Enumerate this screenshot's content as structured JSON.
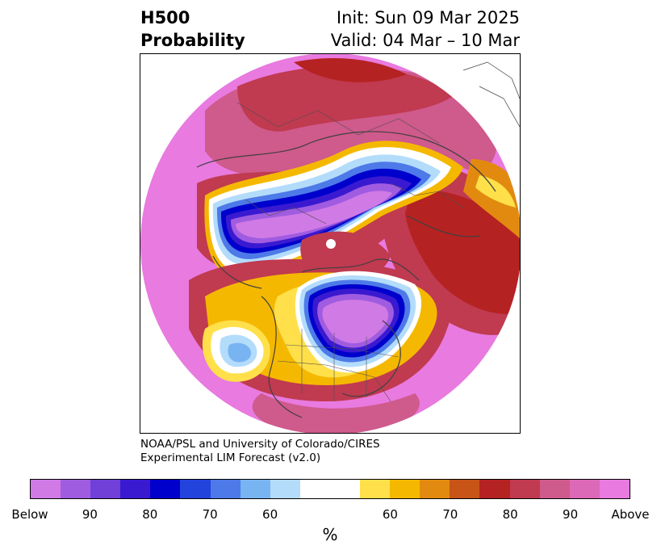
{
  "title": {
    "left_line1": "H500",
    "left_line2": "Probability",
    "right_line1": "Init: Sun 09 Mar 2025",
    "right_line2": "Valid: 04 Mar – 10 Mar"
  },
  "credit": {
    "line1": "NOAA/PSL and University of Colorado/CIRES",
    "line2": "Experimental LIM Forecast (v2.0)"
  },
  "colorbar": {
    "unit": "%",
    "colors": [
      "#d07ae6",
      "#a05ce0",
      "#7040d8",
      "#3a1ad0",
      "#0000cc",
      "#2244dd",
      "#4d7ae8",
      "#78b4f2",
      "#b3dcfb",
      "#ffffff",
      "#ffffff",
      "#ffe04a",
      "#f5b800",
      "#e28a10",
      "#c85418",
      "#b52222",
      "#c03a50",
      "#cf5a8c",
      "#dc68b8",
      "#e87ae0"
    ],
    "labels": [
      "Below",
      "90",
      "80",
      "70",
      "60",
      "60",
      "70",
      "80",
      "90",
      "Above"
    ]
  },
  "map": {
    "colors": {
      "background": "#e87ae0",
      "above_light": "#cf5a8c",
      "above_mid": "#c03a50",
      "above_strong": "#b52222",
      "orange": "#e28a10",
      "yellow": "#f5b800",
      "lightyellow": "#ffe04a",
      "below_light": "#b3dcfb",
      "below_mid": "#4d7ae8",
      "below_strong": "#0000cc",
      "below_purple": "#a05ce0",
      "below_violet": "#d07ae6"
    }
  }
}
